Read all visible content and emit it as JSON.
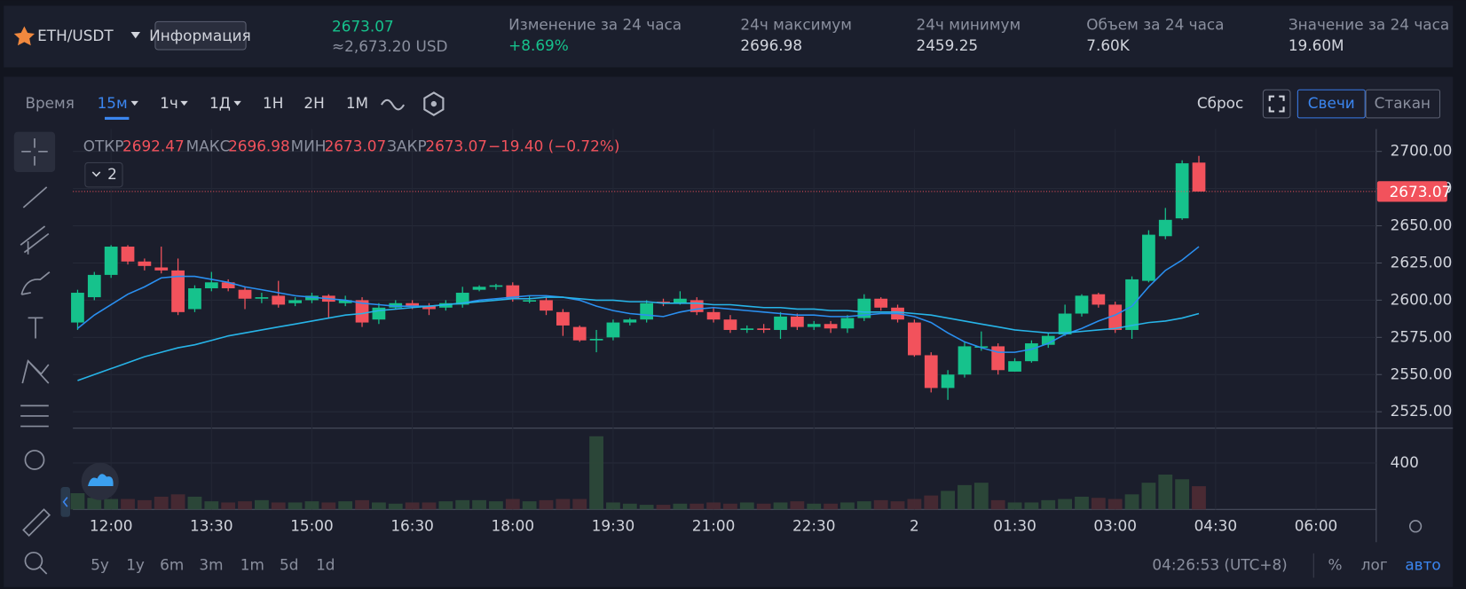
{
  "header": {
    "symbol": "ETH/USDT",
    "info_button": "Информация",
    "price": "2673.07",
    "price_usd": "≈2,673.20 USD",
    "stats": [
      {
        "label": "Изменение за 24 часа",
        "value": "+8.69%"
      },
      {
        "label": "24ч максимум",
        "value": "2696.98"
      },
      {
        "label": "24ч минимум",
        "value": "2459.25"
      },
      {
        "label": "Объем за 24 часа",
        "value": "7.60K"
      },
      {
        "label": "Значение за 24 часа",
        "value": "19.60M"
      }
    ]
  },
  "toolbar": {
    "time": "Время",
    "intervals": [
      "15м",
      "1ч",
      "1Д",
      "1H",
      "2H",
      "1M"
    ],
    "reset": "Сброс",
    "candles": "Свечи",
    "book": "Стакан"
  },
  "bottom": {
    "ranges": [
      "5y",
      "1y",
      "6m",
      "3m",
      "1m",
      "5d",
      "1d"
    ],
    "clock": "04:26:53 (UTC+8)",
    "percent": "%",
    "log": "лог",
    "auto": "авто"
  },
  "legend": {
    "open_label": "ОТКР",
    "open": "2692.47",
    "high_label": "МАКС",
    "high": "2696.98",
    "low_label": "МИН",
    "low": "2673.07",
    "close_label": "ЗАКР",
    "close": "2673.07",
    "change": "−19.40 (−0.72%)",
    "indicators": "2"
  },
  "chart_data": {
    "type": "candlestick",
    "up_color": "#16c28c",
    "down_color": "#f2525c",
    "ylim": [
      2514,
      2715
    ],
    "yticks": [
      {
        "value": 2525,
        "label": "2525.00"
      },
      {
        "value": 2550,
        "label": "2550.00"
      },
      {
        "value": 2575,
        "label": "2575.00"
      },
      {
        "value": 2600,
        "label": "2600.00"
      },
      {
        "value": 2625,
        "label": "2625.00"
      },
      {
        "value": 2650,
        "label": "2650.00"
      },
      {
        "value": 2675,
        "label": "2675.00"
      },
      {
        "value": 2700,
        "label": "2700.00"
      }
    ],
    "xticks": [
      {
        "value": 2,
        "label": "12:00"
      },
      {
        "value": 8,
        "label": "13:30"
      },
      {
        "value": 14,
        "label": "15:00"
      },
      {
        "value": 20,
        "label": "16:30"
      },
      {
        "value": 26,
        "label": "18:00"
      },
      {
        "value": 32,
        "label": "19:30"
      },
      {
        "value": 38,
        "label": "21:00"
      },
      {
        "value": 44,
        "label": "22:30"
      },
      {
        "value": 50,
        "label": "2"
      },
      {
        "value": 56,
        "label": "01:30"
      },
      {
        "value": 62,
        "label": "03:00"
      },
      {
        "value": 68,
        "label": "04:30"
      },
      {
        "value": 74,
        "label": "06:00"
      }
    ],
    "last_price": {
      "value": 2673.07,
      "label": "2673.07"
    },
    "candles": {
      "open": [
        2585,
        2602,
        2617,
        2636,
        2626,
        2622,
        2620,
        2594,
        2608,
        2612,
        2607,
        2601,
        2603,
        2598,
        2600,
        2603,
        2598,
        2600,
        2587,
        2595,
        2598,
        2596,
        2595,
        2597,
        2607,
        2609,
        2610,
        2600,
        2600,
        2592,
        2582,
        2573,
        2575,
        2585,
        2587,
        2599,
        2598,
        2600,
        2592,
        2587,
        2580,
        2581,
        2580,
        2589,
        2582,
        2584,
        2581,
        2588,
        2601,
        2595,
        2585,
        2563,
        2541,
        2550,
        2569,
        2569,
        2552,
        2559,
        2570,
        2577,
        2591,
        2604,
        2597,
        2580,
        2613,
        2643,
        2655,
        2692.47
      ],
      "high": [
        2607,
        2619,
        2637,
        2637,
        2628,
        2636,
        2628,
        2610,
        2619,
        2614,
        2609,
        2605,
        2613,
        2602,
        2605,
        2604,
        2603,
        2602,
        2598,
        2600,
        2600,
        2598,
        2600,
        2609,
        2610,
        2611,
        2612,
        2603,
        2602,
        2594,
        2583,
        2580,
        2587,
        2588,
        2600,
        2601,
        2606,
        2602,
        2595,
        2590,
        2583,
        2584,
        2592,
        2591,
        2586,
        2586,
        2590,
        2604,
        2602,
        2597,
        2587,
        2565,
        2553,
        2572,
        2579,
        2571,
        2561,
        2573,
        2578,
        2597,
        2604,
        2605,
        2599,
        2616,
        2647,
        2662,
        2694,
        2696.98
      ],
      "low": [
        2580,
        2600,
        2615,
        2624,
        2620,
        2618,
        2590,
        2592,
        2606,
        2606,
        2594,
        2598,
        2595,
        2596,
        2598,
        2588,
        2596,
        2582,
        2584,
        2594,
        2594,
        2590,
        2593,
        2595,
        2606,
        2607,
        2599,
        2598,
        2590,
        2576,
        2572,
        2565,
        2573,
        2583,
        2585,
        2596,
        2597,
        2590,
        2585,
        2578,
        2578,
        2578,
        2574,
        2580,
        2580,
        2578,
        2578,
        2586,
        2593,
        2585,
        2562,
        2538,
        2533,
        2548,
        2566,
        2550,
        2552,
        2558,
        2568,
        2576,
        2589,
        2595,
        2578,
        2574,
        2612,
        2641,
        2654,
        2673.07
      ],
      "close": [
        2605,
        2617,
        2636,
        2626,
        2623,
        2620,
        2592,
        2608,
        2612,
        2608,
        2601,
        2602,
        2597,
        2600,
        2603,
        2599,
        2600,
        2585,
        2595,
        2598,
        2596,
        2594,
        2598,
        2605,
        2609,
        2610,
        2601,
        2600,
        2593,
        2583,
        2573,
        2574,
        2585,
        2587,
        2598,
        2598,
        2601,
        2592,
        2587,
        2580,
        2581,
        2580,
        2589,
        2582,
        2584,
        2581,
        2588,
        2601,
        2595,
        2587,
        2563,
        2541,
        2550,
        2569,
        2569,
        2553,
        2559,
        2571,
        2576,
        2591,
        2603,
        2597,
        2580,
        2614,
        2644,
        2654,
        2692,
        2673.07
      ],
      "volume": [
        140,
        100,
        90,
        90,
        80,
        110,
        130,
        110,
        70,
        60,
        70,
        80,
        60,
        60,
        70,
        60,
        70,
        80,
        60,
        50,
        60,
        60,
        70,
        80,
        80,
        70,
        90,
        70,
        80,
        90,
        90,
        630,
        60,
        50,
        40,
        40,
        50,
        50,
        60,
        50,
        60,
        50,
        60,
        70,
        50,
        50,
        60,
        70,
        80,
        70,
        90,
        120,
        160,
        210,
        230,
        80,
        60,
        60,
        80,
        90,
        110,
        100,
        90,
        130,
        230,
        300,
        260,
        200
      ]
    },
    "vlim": [
      0,
      700
    ],
    "vticks": [
      400
    ],
    "series": [
      {
        "color": "#2a8ff0",
        "values": [
          2581,
          2590,
          2597,
          2604,
          2609,
          2615,
          2616,
          2616,
          2614,
          2612,
          2609,
          2607,
          2605,
          2603,
          2602,
          2601,
          2600,
          2598,
          2597,
          2596,
          2596,
          2596,
          2597,
          2598,
          2600,
          2601,
          2602,
          2603,
          2603,
          2602,
          2600,
          2596,
          2593,
          2591,
          2590,
          2589,
          2592,
          2594,
          2595,
          2594,
          2593,
          2592,
          2591,
          2590,
          2590,
          2589,
          2589,
          2590,
          2591,
          2591,
          2589,
          2585,
          2578,
          2572,
          2568,
          2565,
          2565,
          2567,
          2571,
          2577,
          2581,
          2586,
          2590,
          2596,
          2609,
          2620,
          2627,
          2636
        ]
      },
      {
        "color": "#27b4e8",
        "values": [
          2546,
          2550,
          2554,
          2558,
          2562,
          2565,
          2568,
          2570,
          2573,
          2576,
          2578,
          2580,
          2582,
          2584,
          2586,
          2588,
          2590,
          2591,
          2593,
          2594,
          2595,
          2596,
          2597,
          2598,
          2599,
          2600,
          2601,
          2601,
          2602,
          2602,
          2601,
          2600,
          2600,
          2599,
          2599,
          2598,
          2598,
          2598,
          2597,
          2597,
          2596,
          2595,
          2595,
          2594,
          2594,
          2593,
          2593,
          2592,
          2592,
          2592,
          2591,
          2590,
          2588,
          2586,
          2584,
          2582,
          2580,
          2579,
          2578,
          2578,
          2579,
          2580,
          2581,
          2583,
          2585,
          2586,
          2588,
          2591
        ]
      }
    ]
  }
}
